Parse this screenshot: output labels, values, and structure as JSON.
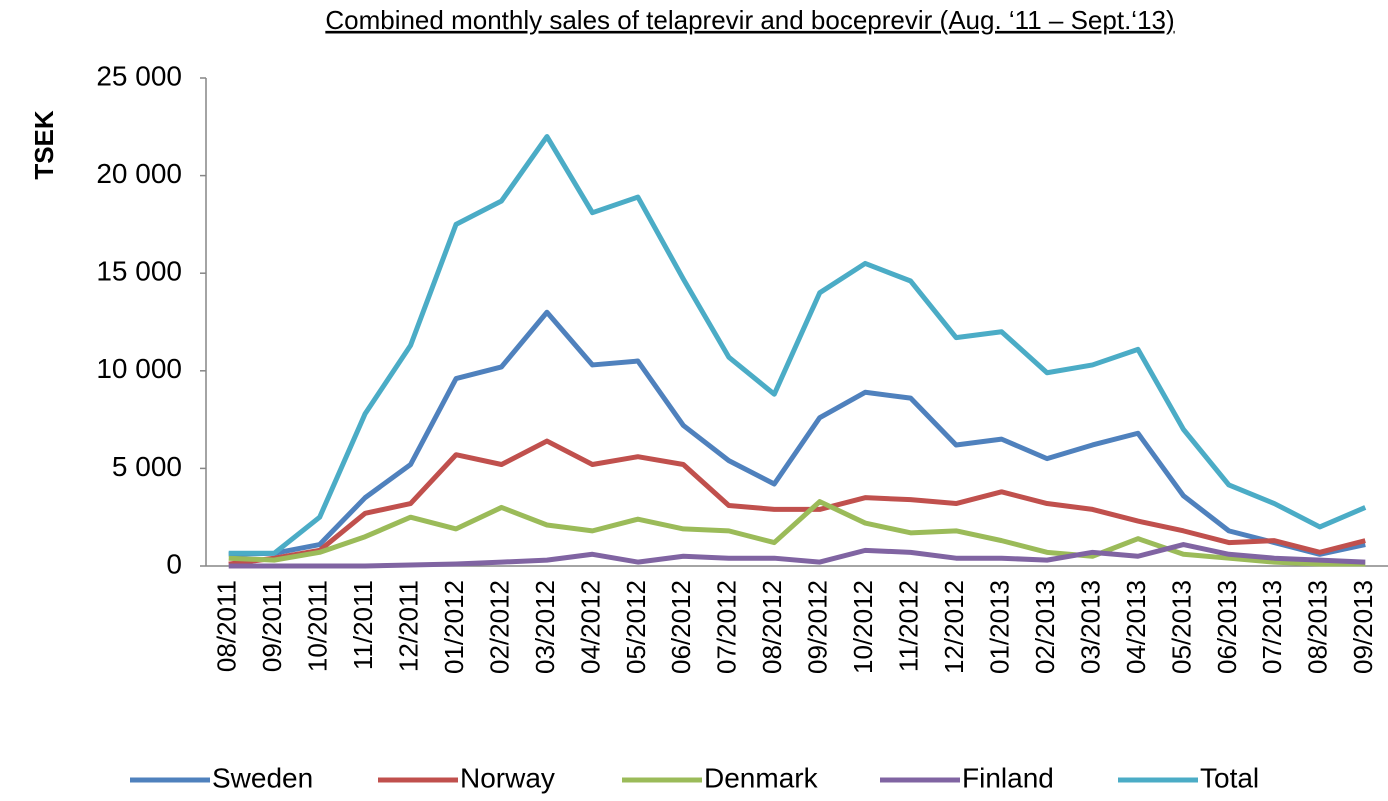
{
  "chart_data": {
    "type": "line",
    "title": "Combined monthly sales of telaprevir and boceprevir (Aug. ‘11 – Sept.‘13)",
    "y_label": "TSEK",
    "categories": [
      "08/2011",
      "09/2011",
      "10/2011",
      "11/2011",
      "12/2011",
      "01/2012",
      "02/2012",
      "03/2012",
      "04/2012",
      "05/2012",
      "06/2012",
      "07/2012",
      "08/2012",
      "09/2012",
      "10/2012",
      "11/2012",
      "12/2012",
      "01/2013",
      "02/2013",
      "03/2013",
      "04/2013",
      "05/2013",
      "06/2013",
      "07/2013",
      "08/2013",
      "09/2013"
    ],
    "series": [
      {
        "name": "Sweden",
        "color": "#4f81bd",
        "values": [
          600,
          650,
          1100,
          3500,
          5200,
          9600,
          10200,
          13000,
          10300,
          10500,
          7200,
          5400,
          4200,
          7600,
          8900,
          8600,
          6200,
          6500,
          5500,
          6200,
          6800,
          3600,
          1800,
          1200,
          600,
          1100
        ]
      },
      {
        "name": "Norway",
        "color": "#c0504d",
        "values": [
          100,
          400,
          800,
          2700,
          3200,
          5700,
          5200,
          6400,
          5200,
          5600,
          5200,
          3100,
          2900,
          2900,
          3500,
          3400,
          3200,
          3800,
          3200,
          2900,
          2300,
          1800,
          1200,
          1300,
          700,
          1300
        ]
      },
      {
        "name": "Denmark",
        "color": "#9bbb59",
        "values": [
          400,
          300,
          700,
          1500,
          2500,
          1900,
          3000,
          2100,
          1800,
          2400,
          1900,
          1800,
          1200,
          3300,
          2200,
          1700,
          1800,
          1300,
          700,
          500,
          1400,
          600,
          400,
          200,
          100,
          100
        ]
      },
      {
        "name": "Finland",
        "color": "#8064a2",
        "values": [
          0,
          0,
          0,
          0,
          50,
          100,
          200,
          300,
          600,
          200,
          500,
          400,
          400,
          200,
          800,
          700,
          400,
          400,
          300,
          700,
          500,
          1100,
          600,
          400,
          300,
          200
        ]
      },
      {
        "name": "Total",
        "color": "#4bacc6",
        "values": [
          650,
          650,
          2500,
          7800,
          11300,
          17500,
          18700,
          22000,
          18100,
          18900,
          14700,
          10700,
          8800,
          14000,
          15500,
          14600,
          11700,
          12000,
          9900,
          10300,
          11100,
          7000,
          4150,
          3200,
          2000,
          3000
        ]
      }
    ],
    "ylim": [
      0,
      25000
    ],
    "yticks": [
      0,
      {
        "value": 5000,
        "label": "5 000"
      },
      {
        "value": 10000,
        "label": "10 000"
      },
      {
        "value": 15000,
        "label": "15 000"
      },
      {
        "value": 20000,
        "label": "20 000"
      },
      {
        "value": 25000,
        "label": "25 000"
      }
    ],
    "grid": false,
    "legend": "bottom"
  }
}
